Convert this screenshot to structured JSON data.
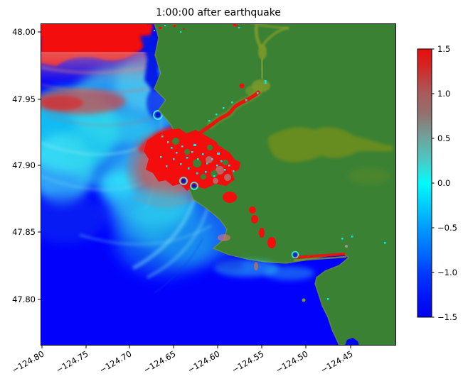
{
  "figure": {
    "title": "1:00:00 after earthquake"
  },
  "colors": {
    "background": "#ffffff",
    "ocean_deep_blue": "#0202fc",
    "land_green": "#3a8134",
    "wave_crest_red": "#f30d0d",
    "sea_level_cyan": "#00f0f0",
    "river_valley_olive": "#7d9a2b",
    "muted_crest_red": "#c96a6a",
    "coastal_dark_blue": "#0616e8",
    "axis_black": "#000000"
  },
  "chart_data": {
    "type": "heatmap",
    "title": "1:00:00 after earthquake",
    "xlabel": "",
    "ylabel": "",
    "x_tick_labels": [
      "−124.80",
      "−124.75",
      "−124.70",
      "−124.65",
      "−124.60",
      "−124.55",
      "−124.50",
      "−124.45"
    ],
    "x_tick_values": [
      -124.8,
      -124.75,
      -124.7,
      -124.65,
      -124.6,
      -124.55,
      -124.5,
      -124.45
    ],
    "x_tick_rotation_deg": 30,
    "y_tick_labels": [
      "48.00",
      "47.95",
      "47.90",
      "47.85",
      "47.80"
    ],
    "y_tick_values": [
      48.0,
      47.95,
      47.9,
      47.85,
      47.8
    ],
    "xlim": [
      -124.802,
      -124.398
    ],
    "ylim": [
      47.765,
      48.006
    ],
    "grid": false,
    "legend": "none",
    "colorbar": {
      "position": "right",
      "min": -1.5,
      "max": 1.5,
      "tick_labels": [
        "1.5",
        "1.0",
        "0.5",
        "0.0",
        "−0.5",
        "−1.0",
        "−1.5"
      ],
      "tick_values": [
        1.5,
        1.0,
        0.5,
        0.0,
        -0.5,
        -1.0,
        -1.5
      ],
      "gradient": [
        {
          "offset": 0.0,
          "color": "#e60f0f"
        },
        {
          "offset": 0.06,
          "color": "#d62323"
        },
        {
          "offset": 0.167,
          "color": "#a85c5c"
        },
        {
          "offset": 0.24,
          "color": "#93706d"
        },
        {
          "offset": 0.333,
          "color": "#6ea49d"
        },
        {
          "offset": 0.41,
          "color": "#4cc7c2"
        },
        {
          "offset": 0.47,
          "color": "#1fe9e6"
        },
        {
          "offset": 0.5,
          "color": "#00fbfb"
        },
        {
          "offset": 0.56,
          "color": "#00d9fc"
        },
        {
          "offset": 0.667,
          "color": "#009bff"
        },
        {
          "offset": 0.78,
          "color": "#0060ff"
        },
        {
          "offset": 0.833,
          "color": "#003bff"
        },
        {
          "offset": 0.93,
          "color": "#0013f8"
        },
        {
          "offset": 1.0,
          "color": "#0202ee"
        }
      ]
    },
    "regions": [
      {
        "feature": "open ocean wave trough",
        "value_range": [
          -1.5,
          -1.0
        ],
        "color": "deep blue",
        "location": "lower left half of map"
      },
      {
        "feature": "near-zero sea surface with interference wave arcs",
        "value_range": [
          -0.5,
          0.3
        ],
        "color": "cyan / light blue",
        "location": "upper left quadrant"
      },
      {
        "feature": "offshore wave crest band",
        "value_range": [
          1.0,
          1.5
        ],
        "color": "red fading to gray-red",
        "location": "top left edge of map"
      },
      {
        "feature": "circular wave crest at river mouth",
        "value_range": [
          0.8,
          1.5
        ],
        "color": "muted red",
        "location": "center of map near coast"
      },
      {
        "feature": "flooded estuary and river channels",
        "value_range": [
          1.5,
          1.5
        ],
        "color": "bright red with cyan speckles",
        "location": "center, around coastline"
      },
      {
        "feature": "dry land",
        "color": "green",
        "location": "right half of map"
      },
      {
        "feature": "river valleys on land",
        "color": "olive green",
        "location": "winding from top edge and center-right"
      },
      {
        "feature": "wave runup spots along lower coast",
        "color": "red",
        "location": "diagonal coastline toward bottom right corner"
      }
    ]
  }
}
